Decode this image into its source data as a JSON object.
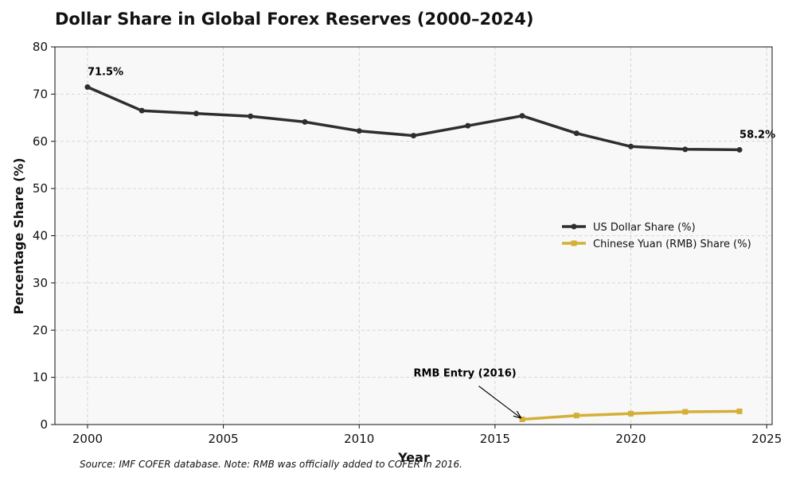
{
  "chart_data": {
    "type": "line",
    "title": "Dollar Share in Global Forex Reserves (2000–2024)",
    "xlabel": "Year",
    "ylabel": "Percentage Share (%)",
    "xlim": [
      1998.8,
      2025.2
    ],
    "ylim": [
      0,
      80
    ],
    "xticks": [
      2000,
      2005,
      2010,
      2015,
      2020,
      2025
    ],
    "yticks": [
      0,
      10,
      20,
      30,
      40,
      50,
      60,
      70,
      80
    ],
    "grid": true,
    "legend_position": "center-right",
    "series": [
      {
        "name": "US Dollar Share (%)",
        "color": "#2e2e2e",
        "marker": "circle",
        "x": [
          2000,
          2002,
          2004,
          2006,
          2008,
          2010,
          2012,
          2014,
          2016,
          2018,
          2020,
          2022,
          2024
        ],
        "y": [
          71.5,
          66.5,
          65.9,
          65.3,
          64.1,
          62.2,
          61.2,
          63.3,
          65.4,
          61.7,
          58.9,
          58.3,
          58.2
        ]
      },
      {
        "name": "Chinese Yuan (RMB) Share (%)",
        "color": "#d4af37",
        "marker": "square",
        "x": [
          2016,
          2018,
          2020,
          2022,
          2024
        ],
        "y": [
          1.1,
          1.9,
          2.3,
          2.7,
          2.8
        ]
      }
    ],
    "annotations": [
      {
        "text": "71.5%",
        "x": 2000,
        "y": 71.5
      },
      {
        "text": "58.2%",
        "x": 2024,
        "y": 58.2
      },
      {
        "text": "RMB Entry (2016)",
        "x": 2016,
        "y": 1.1,
        "text_x": 2012,
        "text_y": 10
      }
    ],
    "source_note": "Source: IMF COFER database. Note: RMB was officially added to COFER in 2016."
  }
}
